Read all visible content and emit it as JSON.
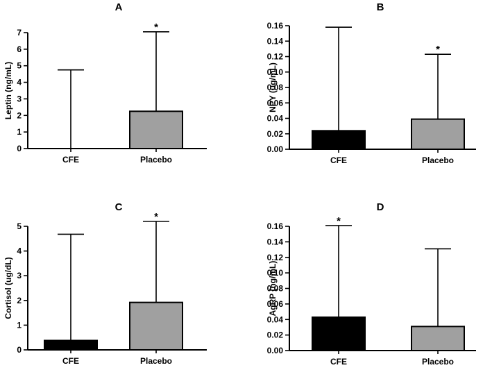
{
  "chart_data": [
    {
      "panel": "A",
      "title": "A",
      "type": "bar",
      "categories": [
        "CFE",
        "Placebo"
      ],
      "values": [
        0,
        2.25
      ],
      "error_upper": [
        4.75,
        7.05
      ],
      "significance": [
        "",
        "*"
      ],
      "ylabel": "Leptin (ng/mL)",
      "xlabel": "",
      "ylim": [
        0,
        7
      ],
      "yticks": [
        0,
        1,
        2,
        3,
        4,
        5,
        6,
        7
      ],
      "ytick_labels": [
        "0",
        "1",
        "2",
        "3",
        "4",
        "5",
        "6",
        "7"
      ],
      "bar_colors": [
        "#000000",
        "#a0a0a0"
      ]
    },
    {
      "panel": "B",
      "title": "B",
      "type": "bar",
      "categories": [
        "CFE",
        "Placebo"
      ],
      "values": [
        0.024,
        0.039
      ],
      "error_upper": [
        0.158,
        0.123
      ],
      "significance": [
        "",
        "*"
      ],
      "ylabel": "NPY (ug/mL)",
      "xlabel": "",
      "ylim": [
        0,
        0.16
      ],
      "yticks": [
        0,
        0.02,
        0.04,
        0.06,
        0.08,
        0.1,
        0.12,
        0.14,
        0.16
      ],
      "ytick_labels": [
        "0.00",
        "0.02",
        "0.04",
        "0.06",
        "0.08",
        "0.10",
        "0.12",
        "0.14",
        "0.16"
      ],
      "bar_colors": [
        "#000000",
        "#a0a0a0"
      ]
    },
    {
      "panel": "C",
      "title": "C",
      "type": "bar",
      "categories": [
        "CFE",
        "Placebo"
      ],
      "values": [
        0.38,
        1.92
      ],
      "error_upper": [
        4.68,
        5.2
      ],
      "significance": [
        "",
        "*"
      ],
      "ylabel": "Cortisol (ug/dL)",
      "xlabel": "",
      "ylim": [
        0,
        5
      ],
      "yticks": [
        0,
        1,
        2,
        3,
        4,
        5
      ],
      "ytick_labels": [
        "0",
        "1",
        "2",
        "3",
        "4",
        "5"
      ],
      "bar_colors": [
        "#000000",
        "#a0a0a0"
      ]
    },
    {
      "panel": "D",
      "title": "D",
      "type": "bar",
      "categories": [
        "CFE",
        "Placebo"
      ],
      "values": [
        0.043,
        0.031
      ],
      "error_upper": [
        0.161,
        0.131
      ],
      "significance": [
        "*",
        ""
      ],
      "ylabel": "AgRP (ng/mL)",
      "xlabel": "",
      "ylim": [
        0,
        0.16
      ],
      "yticks": [
        0,
        0.02,
        0.04,
        0.06,
        0.08,
        0.1,
        0.12,
        0.14,
        0.16
      ],
      "ytick_labels": [
        "0.00",
        "0.02",
        "0.04",
        "0.06",
        "0.08",
        "0.10",
        "0.12",
        "0.14",
        "0.16"
      ],
      "bar_colors": [
        "#000000",
        "#a0a0a0"
      ]
    }
  ]
}
